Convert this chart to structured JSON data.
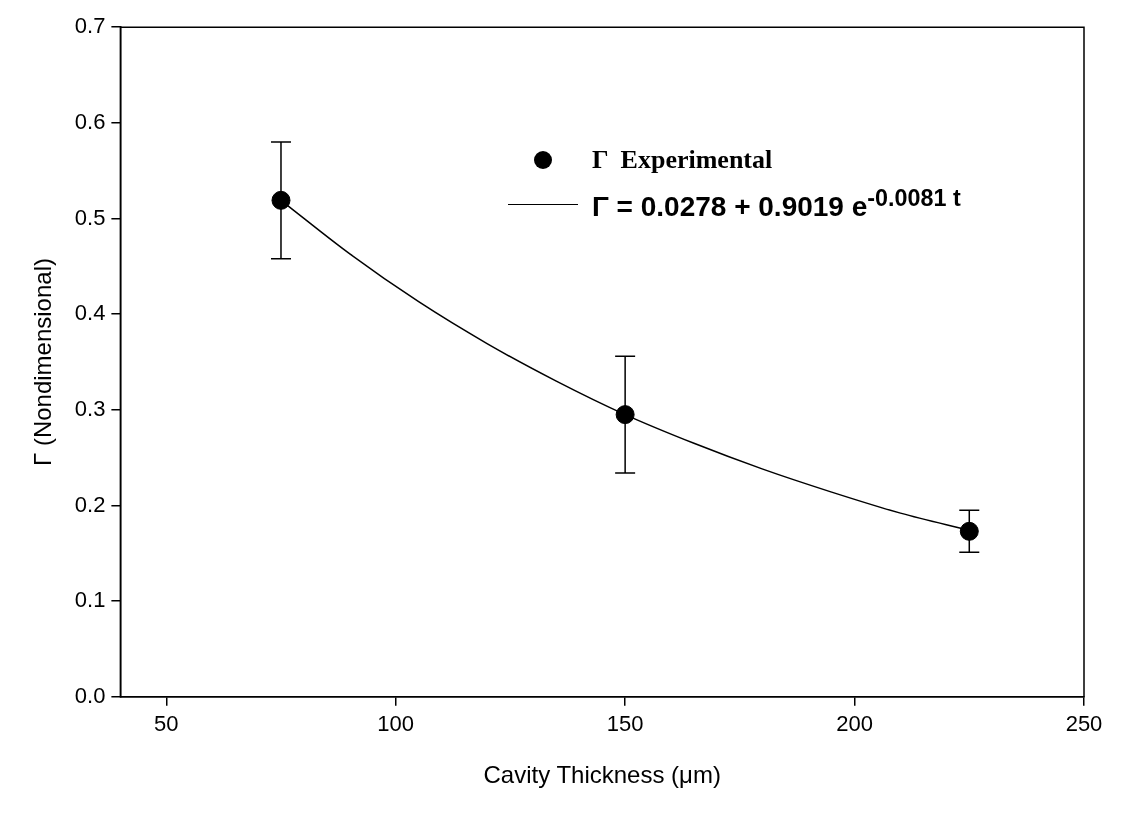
{
  "chart_data": {
    "type": "scatter",
    "xlabel": "Cavity Thickness (μm)",
    "ylabel": "Γ (Nondimensional)",
    "xlim": [
      40,
      250
    ],
    "xticks": [
      50,
      100,
      150,
      200,
      250
    ],
    "ylim": [
      0,
      0.7
    ],
    "yticks": [
      {
        "value": 0,
        "label": "0.0"
      },
      {
        "value": 0.1,
        "label": "0.1"
      },
      {
        "value": 0.2,
        "label": "0.2"
      },
      {
        "value": 0.3,
        "label": "0.3"
      },
      {
        "value": 0.4,
        "label": "0.4"
      },
      {
        "value": 0.5,
        "label": "0.5"
      },
      {
        "value": 0.6,
        "label": "0.6"
      },
      {
        "value": 0.7,
        "label": "0.7"
      }
    ],
    "grid": false,
    "legend": "top right",
    "series": [
      {
        "name": "Γ  Experimental",
        "color": "#000000",
        "marker": "circle",
        "x": [
          75,
          150,
          225
        ],
        "values": [
          0.519,
          0.295,
          0.173
        ],
        "errors": [
          0.061,
          0.061,
          0.022
        ]
      },
      {
        "name": "Γ = 0.0278 + 0.9019 e$^{-0.0081 t}$",
        "type": "line",
        "color": "#000000",
        "marker": "none",
        "line_style": "solid",
        "x": [
          75,
          90,
          105,
          120,
          135,
          150,
          165,
          180,
          195,
          210,
          225
        ],
        "values": [
          0.519,
          0.463,
          0.413,
          0.369,
          0.33,
          0.295,
          0.265,
          0.238,
          0.214,
          0.192,
          0.174
        ]
      }
    ]
  }
}
